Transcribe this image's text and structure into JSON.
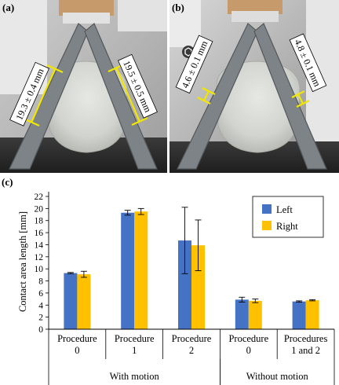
{
  "photos": {
    "a": {
      "label": "(a)",
      "left_measure": "19.3 ± 0.4 mm",
      "right_measure": "19.5 ± 0.5 mm"
    },
    "b": {
      "label": "(b)",
      "left_measure": "4.6 ± 0.1 mm",
      "right_measure": "4.8 ± 0.1 mm"
    }
  },
  "chart_label": "(c)",
  "chart_data": {
    "type": "bar",
    "ylabel": "Contact area length [mm]",
    "ylim": [
      0,
      22
    ],
    "yticks": [
      0,
      2,
      4,
      6,
      8,
      10,
      12,
      14,
      16,
      18,
      20,
      22
    ],
    "categories": [
      [
        "Procedure",
        "0"
      ],
      [
        "Procedure",
        "1"
      ],
      [
        "Procedure",
        "2"
      ],
      [
        "Procedure",
        "0"
      ],
      [
        "Procedures",
        "1 and 2"
      ]
    ],
    "groups": [
      {
        "label": "With motion",
        "categories": [
          0,
          1,
          2
        ]
      },
      {
        "label": "Without motion",
        "categories": [
          3,
          4
        ]
      }
    ],
    "series": [
      {
        "name": "Left",
        "color": "#4472C4",
        "values": [
          9.3,
          19.3,
          14.7,
          4.9,
          4.6
        ],
        "errors": [
          0.1,
          0.4,
          5.5,
          0.4,
          0.1
        ]
      },
      {
        "name": "Right",
        "color": "#FFC000",
        "values": [
          9.1,
          19.5,
          13.9,
          4.7,
          4.8
        ],
        "errors": [
          0.5,
          0.5,
          4.2,
          0.3,
          0.1
        ]
      }
    ],
    "legend": "top-right",
    "grid": false
  }
}
